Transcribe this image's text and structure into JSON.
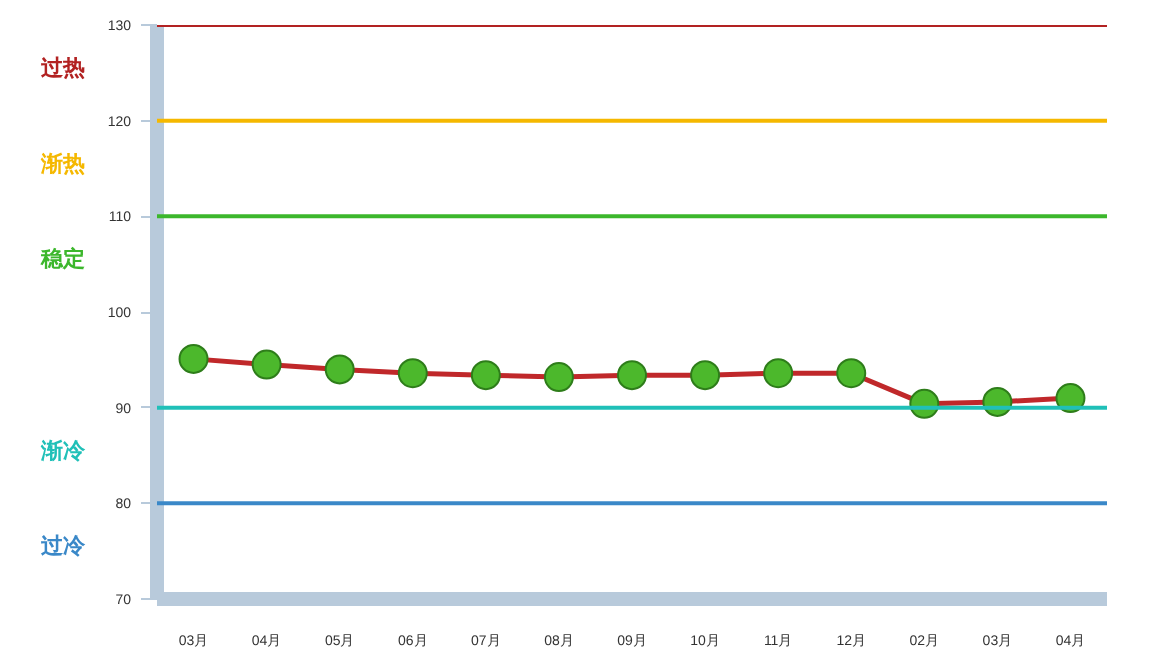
{
  "chart_data": {
    "type": "line",
    "categories": [
      "03月",
      "04月",
      "05月",
      "06月",
      "07月",
      "08月",
      "09月",
      "10月",
      "11月",
      "12月",
      "02月",
      "03月",
      "04月"
    ],
    "series": [
      {
        "color": "#c0282a",
        "values": [
          95.1,
          94.5,
          94.0,
          93.6,
          93.4,
          93.2,
          93.4,
          93.4,
          93.6,
          93.6,
          90.4,
          90.6,
          91.0
        ]
      }
    ],
    "marker": "circle",
    "ylim": [
      70,
      130
    ],
    "yticks": [
      70,
      80,
      90,
      100,
      110,
      120,
      130
    ],
    "grid": false,
    "ref_lines": [
      {
        "axis": "y",
        "value": 130,
        "label": "过热",
        "color": "#b22222"
      },
      {
        "axis": "y",
        "value": 120,
        "label": "渐热",
        "color": "#f5b800"
      },
      {
        "axis": "y",
        "value": 110,
        "label": "稳定",
        "color": "#3cb72c"
      },
      {
        "axis": "y",
        "value": 90,
        "label": "渐冷",
        "color": "#20c0b8"
      },
      {
        "axis": "y",
        "value": 80,
        "label": "过冷",
        "color": "#3a88c8"
      }
    ]
  }
}
